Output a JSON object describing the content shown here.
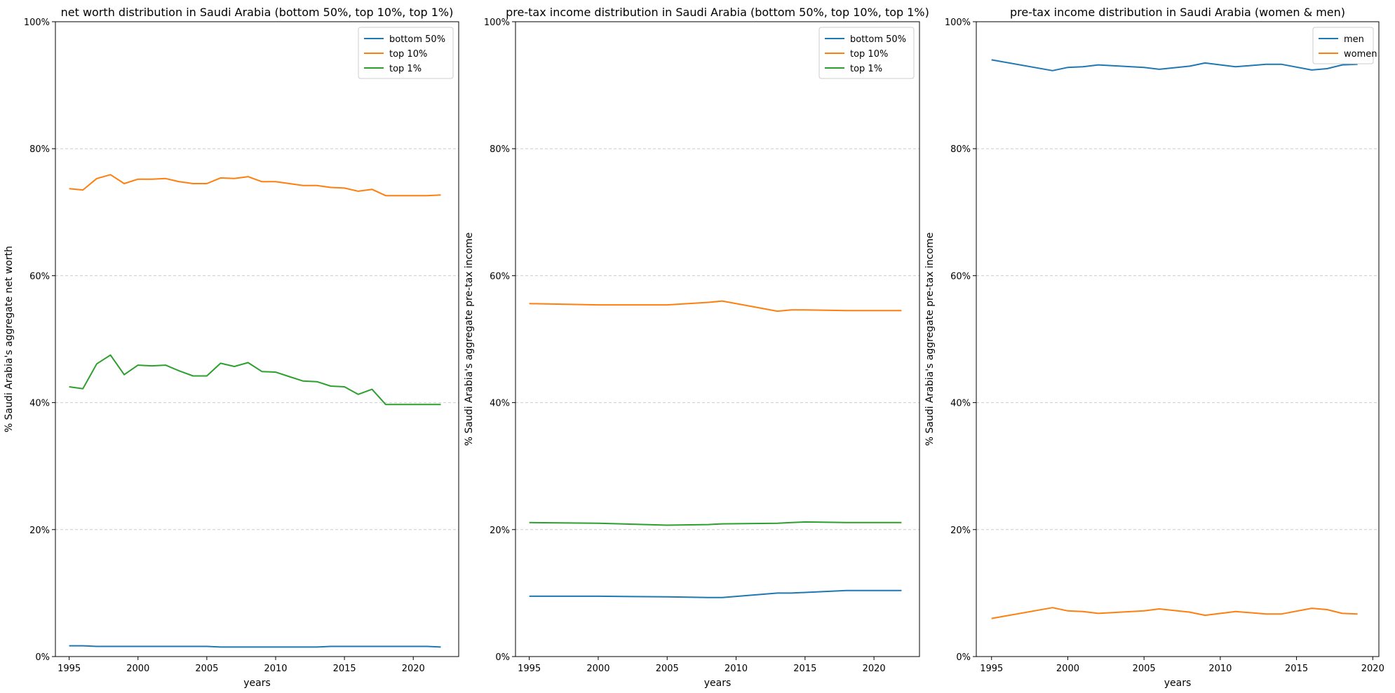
{
  "chart_data": [
    {
      "type": "line",
      "title": "net worth distribution in Saudi Arabia (bottom 50%, top 10%, top 1%)",
      "xlabel": "years",
      "ylabel": "% Saudi Arabia's aggregate net worth",
      "xlim": [
        1994,
        2023.3
      ],
      "ylim": [
        0,
        100
      ],
      "xticks": [
        1995,
        2000,
        2005,
        2010,
        2015,
        2020
      ],
      "yticks": [
        0,
        20,
        40,
        60,
        80,
        100
      ],
      "ytick_suffix": "%",
      "grid": "y-dashed",
      "legend": "top-right",
      "series": [
        {
          "name": "bottom 50%",
          "color": "#1f77b4",
          "x": [
            1995,
            1996,
            1997,
            1998,
            1999,
            2000,
            2001,
            2002,
            2003,
            2004,
            2005,
            2006,
            2007,
            2008,
            2009,
            2010,
            2011,
            2012,
            2013,
            2014,
            2015,
            2016,
            2017,
            2018,
            2019,
            2020,
            2021,
            2022
          ],
          "y": [
            1.7,
            1.7,
            1.6,
            1.6,
            1.6,
            1.6,
            1.6,
            1.6,
            1.6,
            1.6,
            1.6,
            1.5,
            1.5,
            1.5,
            1.5,
            1.5,
            1.5,
            1.5,
            1.5,
            1.6,
            1.6,
            1.6,
            1.6,
            1.6,
            1.6,
            1.6,
            1.6,
            1.5
          ]
        },
        {
          "name": "top 10%",
          "color": "#ff7f0e",
          "x": [
            1995,
            1996,
            1997,
            1998,
            1999,
            2000,
            2001,
            2002,
            2003,
            2004,
            2005,
            2006,
            2007,
            2008,
            2009,
            2010,
            2011,
            2012,
            2013,
            2014,
            2015,
            2016,
            2017,
            2018,
            2019,
            2020,
            2021,
            2022
          ],
          "y": [
            73.7,
            73.5,
            75.3,
            75.9,
            74.5,
            75.2,
            75.2,
            75.3,
            74.8,
            74.5,
            74.5,
            75.4,
            75.3,
            75.6,
            74.8,
            74.8,
            74.5,
            74.2,
            74.2,
            73.9,
            73.8,
            73.3,
            73.6,
            72.6,
            72.6,
            72.6,
            72.6,
            72.7
          ]
        },
        {
          "name": "top 1%",
          "color": "#2ca02c",
          "x": [
            1995,
            1996,
            1997,
            1998,
            1999,
            2000,
            2001,
            2002,
            2003,
            2004,
            2005,
            2006,
            2007,
            2008,
            2009,
            2010,
            2011,
            2012,
            2013,
            2014,
            2015,
            2016,
            2017,
            2018,
            2019,
            2020,
            2021,
            2022
          ],
          "y": [
            42.5,
            42.2,
            46.1,
            47.5,
            44.4,
            45.9,
            45.8,
            45.9,
            45.0,
            44.2,
            44.2,
            46.2,
            45.7,
            46.3,
            44.9,
            44.8,
            44.1,
            43.4,
            43.3,
            42.6,
            42.5,
            41.3,
            42.1,
            39.7,
            39.7,
            39.7,
            39.7,
            39.7
          ]
        }
      ]
    },
    {
      "type": "line",
      "title": "pre-tax income distribution in Saudi Arabia (bottom 50%, top 10%, top 1%)",
      "xlabel": "years",
      "ylabel": "% Saudi Arabia's aggregate pre-tax income",
      "xlim": [
        1994,
        2023.3
      ],
      "ylim": [
        0,
        100
      ],
      "xticks": [
        1995,
        2000,
        2005,
        2010,
        2015,
        2020
      ],
      "yticks": [
        0,
        20,
        40,
        60,
        80,
        100
      ],
      "ytick_suffix": "%",
      "grid": "y-dashed",
      "legend": "top-right",
      "series": [
        {
          "name": "bottom 50%",
          "color": "#1f77b4",
          "x": [
            1995,
            2000,
            2005,
            2008,
            2009,
            2013,
            2014,
            2015,
            2018,
            2022
          ],
          "y": [
            9.5,
            9.5,
            9.4,
            9.3,
            9.3,
            10.0,
            10.0,
            10.1,
            10.4,
            10.4
          ]
        },
        {
          "name": "top 10%",
          "color": "#ff7f0e",
          "x": [
            1995,
            2000,
            2005,
            2008,
            2009,
            2013,
            2014,
            2015,
            2018,
            2022
          ],
          "y": [
            55.6,
            55.4,
            55.4,
            55.8,
            56.0,
            54.4,
            54.6,
            54.6,
            54.5,
            54.5
          ]
        },
        {
          "name": "top 1%",
          "color": "#2ca02c",
          "x": [
            1995,
            2000,
            2005,
            2008,
            2009,
            2013,
            2014,
            2015,
            2018,
            2022
          ],
          "y": [
            21.1,
            21.0,
            20.7,
            20.8,
            20.9,
            21.0,
            21.1,
            21.2,
            21.1,
            21.1
          ]
        }
      ]
    },
    {
      "type": "line",
      "title": "pre-tax income distribution in Saudi Arabia (women & men)",
      "xlabel": "years",
      "ylabel": "% Saudi Arabia's aggregate pre-tax income",
      "xlim": [
        1994,
        2020.4
      ],
      "ylim": [
        0,
        100
      ],
      "xticks": [
        1995,
        2000,
        2005,
        2010,
        2015,
        2020
      ],
      "yticks": [
        0,
        20,
        40,
        60,
        80,
        100
      ],
      "ytick_suffix": "%",
      "grid": "y-dashed",
      "legend": "top-right",
      "series": [
        {
          "name": "men",
          "color": "#1f77b4",
          "x": [
            1995,
            1999,
            2000,
            2001,
            2002,
            2005,
            2006,
            2008,
            2009,
            2011,
            2013,
            2014,
            2016,
            2017,
            2018,
            2019
          ],
          "y": [
            94.0,
            92.3,
            92.8,
            92.9,
            93.2,
            92.8,
            92.5,
            93.0,
            93.5,
            92.9,
            93.3,
            93.3,
            92.4,
            92.6,
            93.2,
            93.3
          ]
        },
        {
          "name": "women",
          "color": "#ff7f0e",
          "x": [
            1995,
            1999,
            2000,
            2001,
            2002,
            2005,
            2006,
            2008,
            2009,
            2011,
            2013,
            2014,
            2016,
            2017,
            2018,
            2019
          ],
          "y": [
            6.0,
            7.7,
            7.2,
            7.1,
            6.8,
            7.2,
            7.5,
            7.0,
            6.5,
            7.1,
            6.7,
            6.7,
            7.6,
            7.4,
            6.8,
            6.7
          ]
        }
      ]
    }
  ]
}
